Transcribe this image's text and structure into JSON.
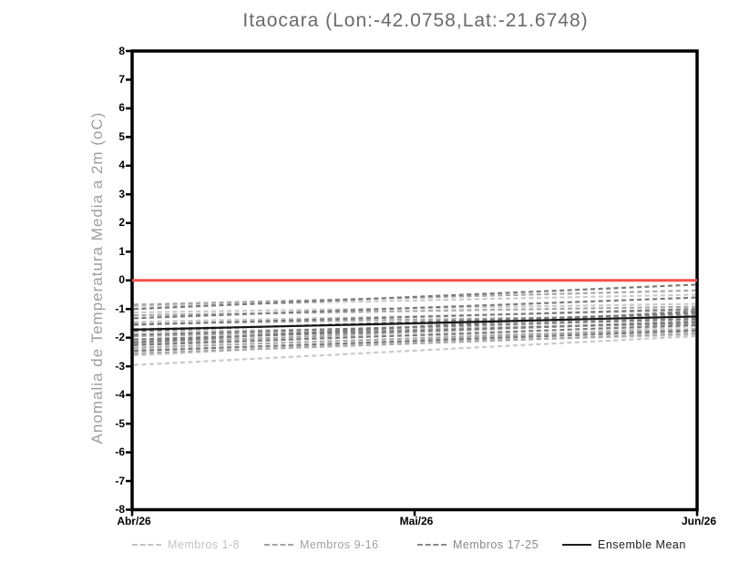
{
  "title": "Itaocara (Lon:-42.0758,Lat:-21.6748)",
  "y_axis": {
    "label": "Anomalia de Temperatura Media a 2m (oC)",
    "ticks": [
      "8",
      "7",
      "6",
      "5",
      "4",
      "3",
      "2",
      "1",
      "0",
      "-1",
      "-2",
      "-3",
      "-4",
      "-5",
      "-6",
      "-7",
      "-8"
    ]
  },
  "x_axis": {
    "ticks": [
      {
        "label": "Abr/26",
        "t": 0
      },
      {
        "label": "Mai/26",
        "t": 0.5
      },
      {
        "label": "Jun/26",
        "t": 1
      }
    ]
  },
  "legend": [
    {
      "label": "Membros 1-8",
      "style": "dashed",
      "color": "#c3c3c3"
    },
    {
      "label": "Membros 9-16",
      "style": "dashed",
      "color": "#a2a2a2"
    },
    {
      "label": "Membros 17-25",
      "style": "dashed",
      "color": "#888888"
    },
    {
      "label": "Ensemble Mean",
      "style": "solid",
      "color": "#1c1c1c"
    }
  ],
  "colors": {
    "axis": "#000000",
    "zero_line": "#f5504b",
    "members_1_8": "#c9c9c9",
    "members_9_16": "#a6a6a6",
    "members_17_25": "#7a7a7a",
    "ensemble_mean": "#141414",
    "title_text": "#6a6a6a",
    "ylabel_text": "#9e9e9e"
  },
  "chart_data": {
    "type": "line",
    "title": "Itaocara (Lon:-42.0758,Lat:-21.6748)",
    "xlabel": "",
    "ylabel": "Anomalia de Temperatura Media a 2m (oC)",
    "ylim": [
      -8,
      8
    ],
    "x_categories": [
      "Abr/26",
      "Mai/26",
      "Jun/26"
    ],
    "grid": false,
    "legend_position": "bottom",
    "zero_line": {
      "value": 0,
      "color": "#f5504b"
    },
    "groups": [
      {
        "name": "Membros 1-8",
        "color": "#c9c9c9",
        "style": "dashed",
        "members": [
          [
            -0.9,
            -0.5
          ],
          [
            -1.12,
            -0.82
          ],
          [
            -1.45,
            -1.05
          ],
          [
            -1.8,
            -1.52
          ],
          [
            -2.1,
            -1.76
          ],
          [
            -2.42,
            -1.9
          ],
          [
            -2.62,
            -1.6
          ],
          [
            -2.95,
            -1.95
          ]
        ]
      },
      {
        "name": "Membros 9-16",
        "color": "#a6a6a6",
        "style": "dashed",
        "members": [
          [
            -0.85,
            -0.35
          ],
          [
            -1.22,
            -0.92
          ],
          [
            -1.52,
            -1.22
          ],
          [
            -1.7,
            -1.32
          ],
          [
            -1.95,
            -1.5
          ],
          [
            -2.2,
            -1.42
          ],
          [
            -2.35,
            -1.7
          ],
          [
            -2.55,
            -1.85
          ]
        ]
      },
      {
        "name": "Membros 17-25",
        "color": "#7a7a7a",
        "style": "dashed",
        "members": [
          [
            -1.0,
            -0.15
          ],
          [
            -1.32,
            -0.6
          ],
          [
            -1.55,
            -1.0
          ],
          [
            -1.76,
            -1.15
          ],
          [
            -1.9,
            -1.35
          ],
          [
            -2.06,
            -1.46
          ],
          [
            -2.26,
            -1.56
          ],
          [
            -2.46,
            -1.76
          ],
          [
            -2.16,
            -1.08
          ]
        ]
      }
    ],
    "ensemble_mean": {
      "name": "Ensemble Mean",
      "color": "#141414",
      "style": "solid",
      "x_t": [
        0,
        0.5,
        1
      ],
      "values": [
        -1.72,
        -1.5,
        -1.26
      ]
    }
  }
}
